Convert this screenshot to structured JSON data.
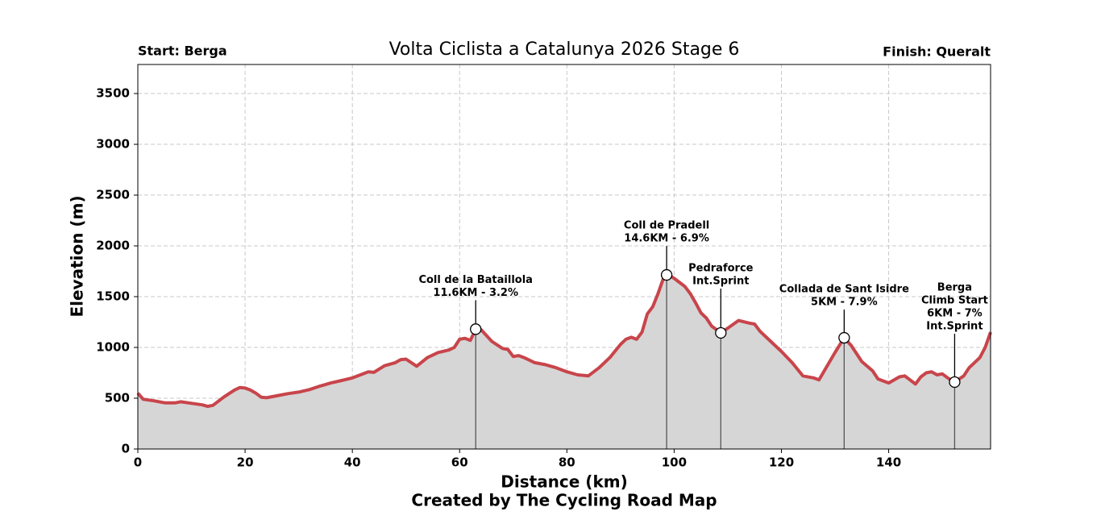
{
  "chart_data": {
    "type": "area",
    "title": "Volta Ciclista a Catalunya 2026 Stage 6",
    "start_label": "Start: Berga",
    "finish_label": "Finish: Queralt",
    "x_label": "Distance (km)",
    "y_label": "Elevation (m)",
    "footer": "Created by The Cycling Road Map",
    "line_color": "#c8454b",
    "fill_color": "#d6d6d6",
    "grid": true,
    "xlim": [
      0,
      159
    ],
    "ylim": [
      0,
      3786
    ],
    "xticks": [
      0,
      20,
      40,
      60,
      80,
      100,
      120,
      140
    ],
    "yticks": [
      0,
      500,
      1000,
      1500,
      2000,
      2500,
      3000,
      3500
    ],
    "x": [
      0,
      1,
      3,
      5,
      7,
      8,
      10,
      12,
      13,
      14,
      16,
      18,
      19,
      20,
      21,
      22,
      23,
      24,
      26,
      28,
      30,
      32,
      34,
      36,
      38,
      40,
      42,
      43,
      44,
      46,
      48,
      49,
      50,
      52,
      54,
      56,
      58,
      59,
      60,
      61,
      62,
      63,
      64,
      66,
      68,
      69,
      70,
      71,
      72,
      74,
      76,
      78,
      80,
      82,
      84,
      86,
      88,
      90,
      91,
      92,
      93,
      94,
      95,
      96,
      97,
      98,
      99,
      100,
      101,
      102,
      103,
      104,
      105,
      106,
      107,
      108.7,
      110,
      112,
      114,
      115,
      116,
      118,
      120,
      122,
      124,
      126,
      127,
      128,
      130,
      131.7,
      133,
      135,
      137,
      138,
      140,
      142,
      143,
      145,
      146,
      147,
      148,
      149,
      150,
      151,
      152.3,
      154,
      155,
      157,
      158,
      159
    ],
    "values": [
      550,
      490,
      475,
      455,
      455,
      465,
      450,
      435,
      420,
      430,
      510,
      580,
      605,
      600,
      580,
      550,
      510,
      505,
      525,
      545,
      560,
      585,
      620,
      650,
      675,
      700,
      740,
      760,
      755,
      820,
      850,
      880,
      885,
      815,
      900,
      950,
      975,
      1000,
      1080,
      1090,
      1070,
      1180,
      1175,
      1060,
      990,
      980,
      910,
      920,
      900,
      850,
      830,
      800,
      760,
      730,
      720,
      800,
      900,
      1030,
      1080,
      1100,
      1080,
      1150,
      1330,
      1400,
      1530,
      1680,
      1714,
      1680,
      1640,
      1600,
      1530,
      1440,
      1340,
      1290,
      1210,
      1143,
      1190,
      1265,
      1240,
      1230,
      1160,
      1060,
      960,
      850,
      720,
      700,
      680,
      770,
      950,
      1095,
      1020,
      860,
      770,
      690,
      650,
      710,
      720,
      640,
      710,
      750,
      760,
      730,
      740,
      700,
      659,
      720,
      800,
      900,
      1000,
      1150
    ],
    "annotations": [
      {
        "x": 63,
        "y": 1180,
        "label": [
          "Coll de la Bataillola",
          "11.6KM - 3.2%"
        ]
      },
      {
        "x": 98.6,
        "y": 1714,
        "label": [
          "Coll de Pradell",
          "14.6KM - 6.9%"
        ]
      },
      {
        "x": 108.7,
        "y": 1143,
        "label": [
          "Pedraforce",
          "Int.Sprint"
        ]
      },
      {
        "x": 131.7,
        "y": 1095,
        "label": [
          "Collada de Sant Isidre",
          "5KM - 7.9%"
        ]
      },
      {
        "x": 152.3,
        "y": 659,
        "label": [
          "Berga",
          "Climb Start",
          "6KM - 7%",
          "Int.Sprint"
        ]
      }
    ]
  }
}
